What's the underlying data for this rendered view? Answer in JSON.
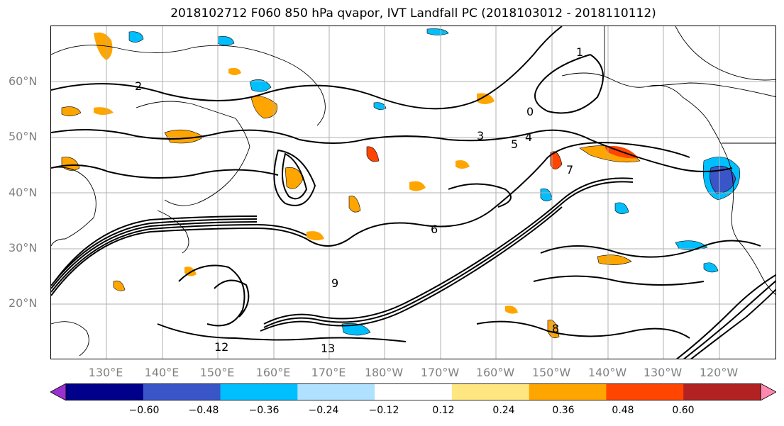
{
  "title": "2018102712 F060 850 hPa qvapor, IVT Landfall PC (2018103012 - 2018110112)",
  "lat_labels": [
    "60°N",
    "50°N",
    "40°N",
    "30°N",
    "20°N"
  ],
  "lon_labels": [
    "130°E",
    "140°E",
    "150°E",
    "160°E",
    "170°E",
    "180°W",
    "170°W",
    "160°W",
    "150°W",
    "140°W",
    "130°W",
    "120°W"
  ],
  "contour_labels": [
    "0",
    "1",
    "2",
    "3",
    "4",
    "5",
    "6",
    "7",
    "8",
    "9",
    "12",
    "13"
  ],
  "colorbar": {
    "ticks": [
      "−0.60",
      "−0.48",
      "−0.36",
      "−0.24",
      "−0.12",
      "0.12",
      "0.24",
      "0.36",
      "0.48",
      "0.60"
    ],
    "colors": [
      "#9b30d0",
      "#00008b",
      "#3a55c8",
      "#00bfff",
      "#b0e2ff",
      "#ffffff",
      "#ffe680",
      "#ffa500",
      "#ff4500",
      "#b22222",
      "#ff88b0"
    ]
  }
}
